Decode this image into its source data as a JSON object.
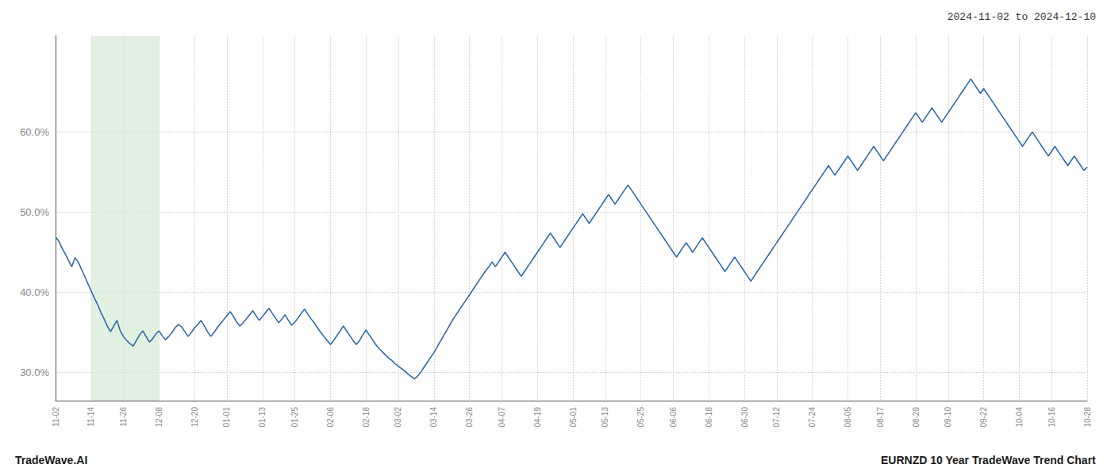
{
  "chart_data": {
    "type": "line",
    "title": "2024-11-02 to 2024-12-10",
    "annotations": [
      "TradeWave.AI",
      "EURNZD 10 Year TradeWave Trend Chart"
    ],
    "color": "#2563a8",
    "grid": true,
    "ylim": [
      0.265,
      0.72
    ],
    "yticks": [
      {
        "value": 0.3,
        "label": "30.0%"
      },
      {
        "value": 0.4,
        "label": "40.0%"
      },
      {
        "value": 0.5,
        "label": "50.0%"
      },
      {
        "value": 0.6,
        "label": "60.0%"
      }
    ],
    "shade": {
      "start": "11-14",
      "end": "12-08",
      "color": "#d6ead6"
    },
    "categories": [
      "11-02",
      null,
      null,
      null,
      null,
      null,
      null,
      null,
      null,
      null,
      null,
      "11-14",
      null,
      null,
      null,
      null,
      null,
      null,
      null,
      null,
      null,
      "11-26",
      null,
      null,
      null,
      null,
      null,
      null,
      null,
      null,
      null,
      null,
      "12-08",
      null,
      null,
      null,
      null,
      null,
      null,
      null,
      null,
      null,
      null,
      "12-20",
      null,
      null,
      null,
      null,
      null,
      null,
      null,
      null,
      null,
      "01-01",
      null,
      null,
      null,
      null,
      null,
      null,
      null,
      null,
      null,
      null,
      "01-13",
      null,
      null,
      null,
      null,
      null,
      null,
      null,
      null,
      null,
      "01-25",
      null,
      null,
      null,
      null,
      null,
      null,
      null,
      null,
      null,
      null,
      "02-06",
      null,
      null,
      null,
      null,
      null,
      null,
      null,
      null,
      null,
      null,
      "02-18",
      null,
      null,
      null,
      null,
      null,
      null,
      null,
      null,
      null,
      "03-02",
      null,
      null,
      null,
      null,
      null,
      null,
      null,
      null,
      null,
      null,
      "03-14",
      null,
      null,
      null,
      null,
      null,
      null,
      null,
      null,
      null,
      null,
      "03-26",
      null,
      null,
      null,
      null,
      null,
      null,
      null,
      null,
      null,
      "04-07",
      null,
      null,
      null,
      null,
      null,
      null,
      null,
      null,
      null,
      null,
      "04-19",
      null,
      null,
      null,
      null,
      null,
      null,
      null,
      null,
      null,
      null,
      "05-01",
      null,
      null,
      null,
      null,
      null,
      null,
      null,
      null,
      null,
      "05-13",
      null,
      null,
      null,
      null,
      null,
      null,
      null,
      null,
      null,
      null,
      "05-25",
      null,
      null,
      null,
      null,
      null,
      null,
      null,
      null,
      null,
      "06-06",
      null,
      null,
      null,
      null,
      null,
      null,
      null,
      null,
      null,
      null,
      "06-18",
      null,
      null,
      null,
      null,
      null,
      null,
      null,
      null,
      null,
      null,
      "06-30",
      null,
      null,
      null,
      null,
      null,
      null,
      null,
      null,
      null,
      "07-12",
      null,
      null,
      null,
      null,
      null,
      null,
      null,
      null,
      null,
      null,
      "07-24",
      null,
      null,
      null,
      null,
      null,
      null,
      null,
      null,
      null,
      null,
      "08-05",
      null,
      null,
      null,
      null,
      null,
      null,
      null,
      null,
      null,
      "08-17",
      null,
      null,
      null,
      null,
      null,
      null,
      null,
      null,
      null,
      null,
      "08-29",
      null,
      null,
      null,
      null,
      null,
      null,
      null,
      null,
      null,
      "09-10",
      null,
      null,
      null,
      null,
      null,
      null,
      null,
      null,
      null,
      null,
      "09-22",
      null,
      null,
      null,
      null,
      null,
      null,
      null,
      null,
      null,
      null,
      "10-04",
      null,
      null,
      null,
      null,
      null,
      null,
      null,
      null,
      null,
      "10-16",
      null,
      null,
      null,
      null,
      null,
      null,
      null,
      null,
      null,
      null,
      "10-28"
    ],
    "values": [
      0.469,
      0.464,
      0.455,
      0.448,
      0.44,
      0.432,
      0.443,
      0.438,
      0.429,
      0.42,
      0.411,
      0.402,
      0.393,
      0.385,
      0.375,
      0.367,
      0.358,
      0.351,
      0.358,
      0.365,
      0.352,
      0.345,
      0.34,
      0.336,
      0.333,
      0.34,
      0.347,
      0.352,
      0.345,
      0.338,
      0.342,
      0.348,
      0.352,
      0.346,
      0.341,
      0.345,
      0.35,
      0.356,
      0.36,
      0.357,
      0.351,
      0.345,
      0.35,
      0.356,
      0.36,
      0.365,
      0.358,
      0.351,
      0.345,
      0.35,
      0.356,
      0.361,
      0.366,
      0.371,
      0.376,
      0.37,
      0.363,
      0.358,
      0.362,
      0.367,
      0.372,
      0.377,
      0.371,
      0.365,
      0.37,
      0.375,
      0.38,
      0.374,
      0.368,
      0.362,
      0.367,
      0.372,
      0.365,
      0.359,
      0.363,
      0.368,
      0.374,
      0.379,
      0.373,
      0.367,
      0.362,
      0.356,
      0.35,
      0.345,
      0.34,
      0.335,
      0.34,
      0.346,
      0.352,
      0.358,
      0.352,
      0.346,
      0.34,
      0.335,
      0.34,
      0.347,
      0.353,
      0.347,
      0.341,
      0.335,
      0.33,
      0.326,
      0.322,
      0.318,
      0.315,
      0.311,
      0.308,
      0.305,
      0.302,
      0.298,
      0.295,
      0.292,
      0.296,
      0.301,
      0.307,
      0.313,
      0.319,
      0.325,
      0.332,
      0.339,
      0.346,
      0.353,
      0.36,
      0.367,
      0.373,
      0.379,
      0.385,
      0.391,
      0.397,
      0.403,
      0.409,
      0.415,
      0.421,
      0.427,
      0.432,
      0.438,
      0.432,
      0.438,
      0.444,
      0.45,
      0.444,
      0.438,
      0.432,
      0.426,
      0.42,
      0.426,
      0.432,
      0.438,
      0.444,
      0.45,
      0.456,
      0.462,
      0.468,
      0.474,
      0.468,
      0.462,
      0.456,
      0.462,
      0.468,
      0.474,
      0.48,
      0.486,
      0.492,
      0.498,
      0.492,
      0.486,
      0.492,
      0.498,
      0.504,
      0.51,
      0.516,
      0.522,
      0.516,
      0.51,
      0.516,
      0.522,
      0.528,
      0.534,
      0.528,
      0.522,
      0.516,
      0.51,
      0.504,
      0.498,
      0.492,
      0.486,
      0.48,
      0.474,
      0.468,
      0.462,
      0.456,
      0.45,
      0.444,
      0.45,
      0.456,
      0.462,
      0.456,
      0.45,
      0.456,
      0.462,
      0.468,
      0.462,
      0.456,
      0.45,
      0.444,
      0.438,
      0.432,
      0.426,
      0.432,
      0.438,
      0.444,
      0.438,
      0.432,
      0.426,
      0.42,
      0.414,
      0.42,
      0.426,
      0.432,
      0.438,
      0.444,
      0.45,
      0.456,
      0.462,
      0.468,
      0.474,
      0.48,
      0.486,
      0.492,
      0.498,
      0.504,
      0.51,
      0.516,
      0.522,
      0.528,
      0.534,
      0.54,
      0.546,
      0.552,
      0.558,
      0.552,
      0.546,
      0.552,
      0.558,
      0.564,
      0.57,
      0.564,
      0.558,
      0.552,
      0.558,
      0.564,
      0.57,
      0.576,
      0.582,
      0.576,
      0.57,
      0.564,
      0.57,
      0.576,
      0.582,
      0.588,
      0.594,
      0.6,
      0.606,
      0.612,
      0.618,
      0.624,
      0.618,
      0.612,
      0.618,
      0.624,
      0.63,
      0.624,
      0.618,
      0.612,
      0.618,
      0.624,
      0.63,
      0.636,
      0.642,
      0.648,
      0.654,
      0.66,
      0.666,
      0.66,
      0.654,
      0.648,
      0.654,
      0.648,
      0.642,
      0.636,
      0.63,
      0.624,
      0.618,
      0.612,
      0.606,
      0.6,
      0.594,
      0.588,
      0.582,
      0.588,
      0.594,
      0.6,
      0.594,
      0.588,
      0.582,
      0.576,
      0.57,
      0.576,
      0.582,
      0.576,
      0.57,
      0.564,
      0.558,
      0.564,
      0.57,
      0.564,
      0.558,
      0.552,
      0.556
    ]
  }
}
